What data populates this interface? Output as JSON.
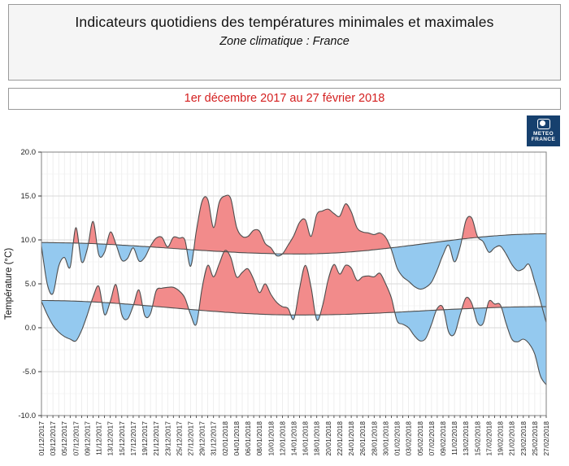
{
  "header": {
    "title": "Indicateurs quotidiens des températures minimales et maximales",
    "subtitle": "Zone climatique : France"
  },
  "period": {
    "label": "1er décembre 2017 au 27 février 2018",
    "color": "#d42020"
  },
  "logo": {
    "line1": "METEO",
    "line2": "FRANCE",
    "bg": "#16406e"
  },
  "chart_data": {
    "type": "area",
    "title": "",
    "xlabel": "",
    "ylabel": "Température (°C)",
    "ylim": [
      -10,
      20
    ],
    "grid": true,
    "legend": "none",
    "yticks": [
      20,
      15,
      10,
      5,
      0,
      -5,
      -10
    ],
    "ytick_labels": [
      "20.0",
      "15.0",
      "10.0",
      "5.0",
      "0.0",
      "-5.0",
      "-10.0"
    ],
    "n_days": 89,
    "x_label_step_days": 2,
    "x_labels": [
      "01/12/2017",
      "03/12/2017",
      "05/12/2017",
      "07/12/2017",
      "09/12/2017",
      "11/12/2017",
      "13/12/2017",
      "15/12/2017",
      "17/12/2017",
      "19/12/2017",
      "21/12/2017",
      "23/12/2017",
      "25/12/2017",
      "27/12/2017",
      "29/12/2017",
      "31/12/2017",
      "02/01/2018",
      "04/01/2018",
      "06/01/2018",
      "08/01/2018",
      "10/01/2018",
      "12/01/2018",
      "14/01/2018",
      "16/01/2018",
      "18/01/2018",
      "20/01/2018",
      "22/01/2018",
      "24/01/2018",
      "26/01/2018",
      "28/01/2018",
      "30/01/2018",
      "01/02/2018",
      "03/02/2018",
      "05/02/2018",
      "07/02/2018",
      "09/02/2018",
      "11/02/2018",
      "13/02/2018",
      "15/02/2018",
      "17/02/2018",
      "19/02/2018",
      "21/02/2018",
      "23/02/2018",
      "25/02/2018",
      "27/02/2018"
    ],
    "series": [
      {
        "name": "tmax_observed",
        "values": [
          9.3,
          5.0,
          3.9,
          7.0,
          8.0,
          6.9,
          11.4,
          7.5,
          9.0,
          12.1,
          8.3,
          8.6,
          10.9,
          9.5,
          7.7,
          7.9,
          9.1,
          7.6,
          8.0,
          9.3,
          10.2,
          10.3,
          9.2,
          10.3,
          10.2,
          10.0,
          7.0,
          11.0,
          14.4,
          14.6,
          11.4,
          14.3,
          15.0,
          14.7,
          11.5,
          10.4,
          10.4,
          11.1,
          11.0,
          9.6,
          9.1,
          8.2,
          8.4,
          9.4,
          10.5,
          12.0,
          12.3,
          10.4,
          12.9,
          13.3,
          13.5,
          13.0,
          12.7,
          14.1,
          13.2,
          11.4,
          10.9,
          10.8,
          10.6,
          10.8,
          10.3,
          8.9,
          6.8,
          5.8,
          5.3,
          4.7,
          4.4,
          4.6,
          5.2,
          6.6,
          8.3,
          9.4,
          7.5,
          9.2,
          12.2,
          12.5,
          10.4,
          9.8,
          8.6,
          9.1,
          9.3,
          8.4,
          7.2,
          6.5,
          6.7,
          7.2,
          5.2,
          3.0,
          0.6
        ]
      },
      {
        "name": "tmin_observed",
        "values": [
          3.0,
          1.5,
          0.3,
          -0.5,
          -1.0,
          -1.3,
          -1.5,
          -0.3,
          1.5,
          3.5,
          4.7,
          1.5,
          3.0,
          4.9,
          1.5,
          1.0,
          2.5,
          4.3,
          1.4,
          1.6,
          4.2,
          4.5,
          4.6,
          4.6,
          4.2,
          3.4,
          1.5,
          0.4,
          4.5,
          7.1,
          5.8,
          7.3,
          8.8,
          8.0,
          5.8,
          6.3,
          6.7,
          5.5,
          4.0,
          5.0,
          3.8,
          2.9,
          2.4,
          2.2,
          1.0,
          4.5,
          7.1,
          4.6,
          0.9,
          2.5,
          5.5,
          7.2,
          6.1,
          7.1,
          6.8,
          5.4,
          5.8,
          5.9,
          5.8,
          6.2,
          5.0,
          3.4,
          0.8,
          0.4,
          0.0,
          -0.9,
          -1.5,
          -1.2,
          0.4,
          2.2,
          2.3,
          -0.5,
          -0.7,
          1.5,
          3.4,
          2.8,
          0.6,
          0.5,
          3.0,
          2.7,
          2.6,
          0.5,
          -1.3,
          -1.6,
          -1.3,
          -1.8,
          -3.0,
          -5.5,
          -6.5
        ]
      },
      {
        "name": "tmax_normal",
        "values": [
          9.7,
          9.7,
          9.69,
          9.68,
          9.67,
          9.66,
          9.64,
          9.62,
          9.6,
          9.58,
          9.55,
          9.52,
          9.48,
          9.45,
          9.41,
          9.37,
          9.33,
          9.29,
          9.25,
          9.21,
          9.16,
          9.12,
          9.07,
          9.03,
          8.98,
          8.94,
          8.89,
          8.85,
          8.81,
          8.77,
          8.72,
          8.69,
          8.65,
          8.62,
          8.58,
          8.55,
          8.52,
          8.5,
          8.48,
          8.46,
          8.44,
          8.43,
          8.41,
          8.41,
          8.4,
          8.4,
          8.4,
          8.41,
          8.43,
          8.45,
          8.48,
          8.51,
          8.55,
          8.59,
          8.64,
          8.69,
          8.75,
          8.81,
          8.88,
          8.95,
          9.02,
          9.1,
          9.18,
          9.26,
          9.34,
          9.42,
          9.51,
          9.59,
          9.68,
          9.76,
          9.84,
          9.92,
          10.0,
          10.08,
          10.15,
          10.22,
          10.29,
          10.35,
          10.41,
          10.46,
          10.51,
          10.55,
          10.59,
          10.62,
          10.65,
          10.67,
          10.69,
          10.7,
          10.7
        ]
      },
      {
        "name": "tmin_normal",
        "values": [
          3.1,
          3.1,
          3.09,
          3.08,
          3.07,
          3.05,
          3.03,
          3.0,
          2.97,
          2.94,
          2.91,
          2.87,
          2.83,
          2.78,
          2.74,
          2.69,
          2.64,
          2.58,
          2.53,
          2.48,
          2.42,
          2.36,
          2.31,
          2.25,
          2.19,
          2.14,
          2.08,
          2.03,
          1.97,
          1.92,
          1.87,
          1.82,
          1.77,
          1.73,
          1.68,
          1.65,
          1.61,
          1.58,
          1.55,
          1.52,
          1.5,
          1.48,
          1.47,
          1.46,
          1.45,
          1.45,
          1.45,
          1.46,
          1.46,
          1.47,
          1.48,
          1.5,
          1.51,
          1.53,
          1.55,
          1.58,
          1.6,
          1.63,
          1.65,
          1.68,
          1.71,
          1.74,
          1.77,
          1.81,
          1.84,
          1.88,
          1.91,
          1.95,
          1.98,
          2.02,
          2.05,
          2.08,
          2.11,
          2.14,
          2.17,
          2.2,
          2.23,
          2.25,
          2.27,
          2.3,
          2.32,
          2.34,
          2.36,
          2.37,
          2.38,
          2.39,
          2.4,
          2.4,
          2.4
        ]
      }
    ],
    "colors": {
      "above_normal": "#f28b8b",
      "below_normal": "#94c9ef",
      "curve": "#4d4d4d",
      "grid_major": "#d9d9d9",
      "grid_minor": "#f0f0f0",
      "frame": "#808080",
      "tick": "#333333"
    }
  }
}
